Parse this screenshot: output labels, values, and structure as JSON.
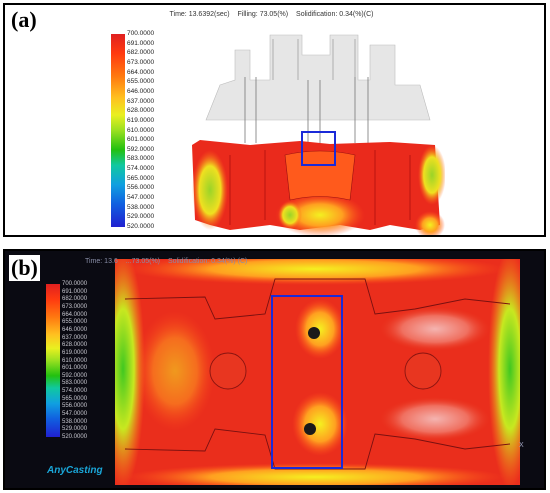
{
  "panel_a": {
    "label": "(a)",
    "status": {
      "time": "Time: 13.6392(sec)",
      "filling": "Filling: 73.05(%)",
      "solidification": "Solidification: 0.34(%)(C)"
    },
    "legend": [
      "700.0000",
      "691.0000",
      "682.0000",
      "673.0000",
      "664.0000",
      "655.0000",
      "646.0000",
      "637.0000",
      "628.0000",
      "619.0000",
      "610.0000",
      "601.0000",
      "592.0000",
      "583.0000",
      "574.0000",
      "565.0000",
      "556.0000",
      "547.0000",
      "538.0000",
      "529.0000",
      "520.0000"
    ]
  },
  "panel_b": {
    "label": "(b)",
    "status": {
      "time": "Time: 13.6",
      "filling": "...73.05(%)",
      "solidification": "Solidification: 0.34(%) (C)"
    },
    "legend": [
      "700.0000",
      "691.0000",
      "682.0000",
      "673.0000",
      "664.0000",
      "655.0000",
      "646.0000",
      "637.0000",
      "628.0000",
      "619.0000",
      "610.0000",
      "601.0000",
      "592.0000",
      "583.0000",
      "574.0000",
      "565.0000",
      "556.0000",
      "547.0000",
      "538.0000",
      "529.0000",
      "520.0000"
    ],
    "logo": "AnyCasting",
    "axis_label": "X"
  },
  "colors": {
    "highlight_box": "#1a2ad8",
    "hot": "#e8261a",
    "warm": "#ff7a1a",
    "cool": "#b8e020"
  }
}
